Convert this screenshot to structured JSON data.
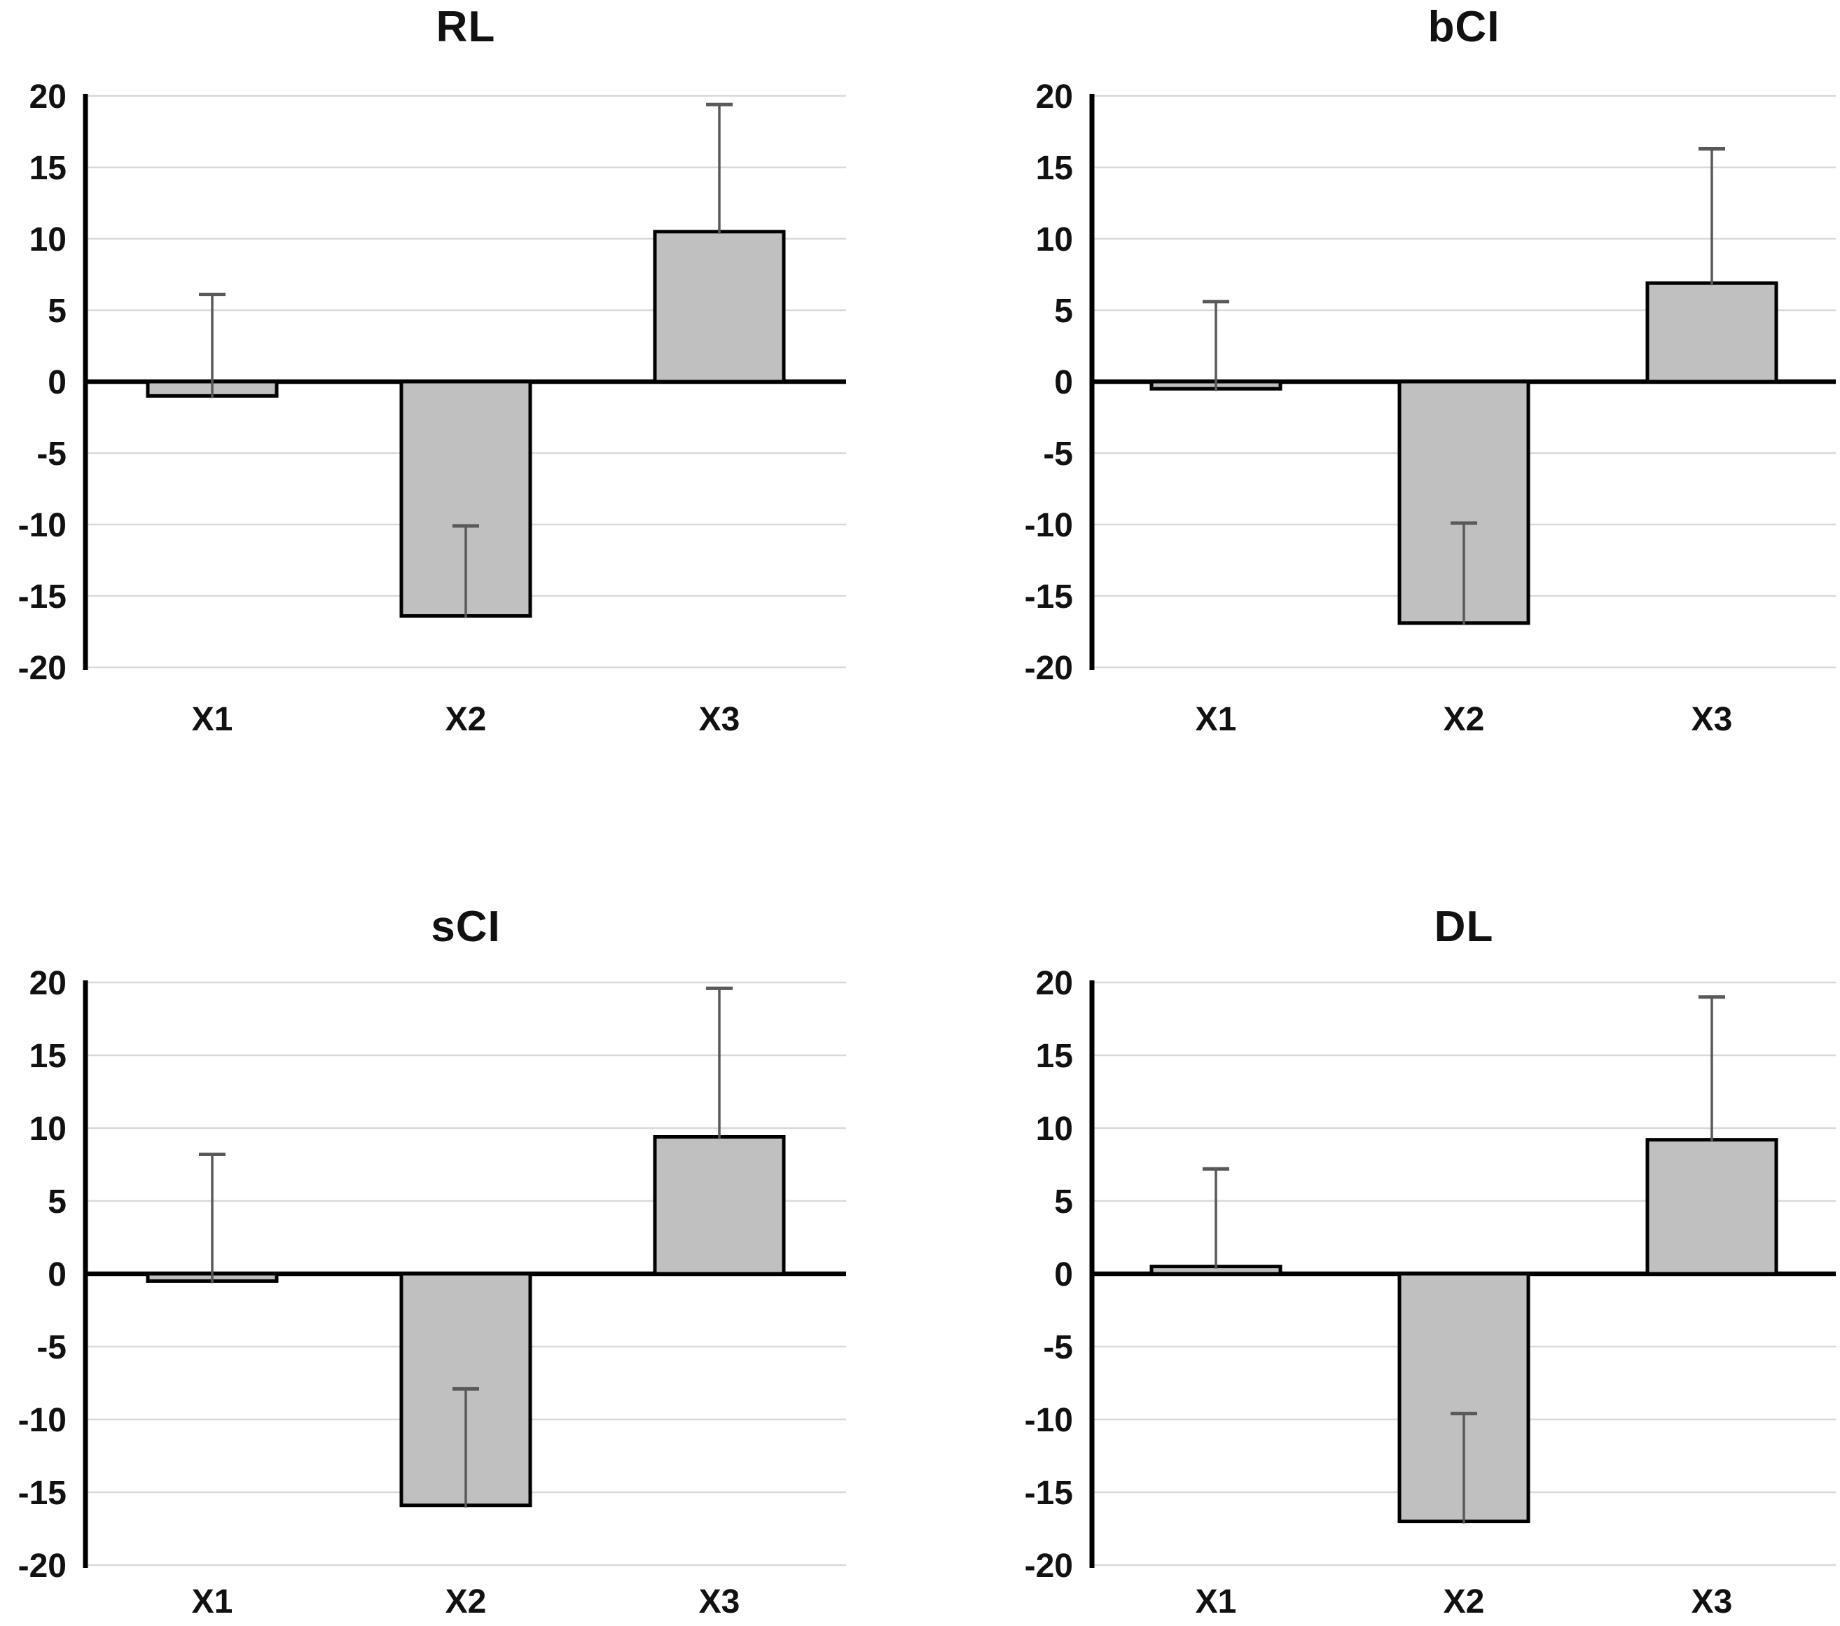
{
  "figure": {
    "background_color": "#ffffff",
    "text_color": "#111111"
  },
  "chart_data": {
    "type": "bar",
    "layout": "2x2-grid",
    "categories": [
      "X1",
      "X2",
      "X3"
    ],
    "ylim": [
      -20,
      20
    ],
    "ytick_step": 5,
    "ytick_labels": [
      "20",
      "15",
      "10",
      "5",
      "0",
      "-5",
      "-10",
      "-15",
      "-20"
    ],
    "grid": true,
    "legend": "none",
    "error_bars": "plus-direction-only",
    "bar_color": "#c0c0c0",
    "bar_border_color": "#000000",
    "error_bar_color": "#595959",
    "gridline_color": "#d9d9d9",
    "axis_color": "#000000",
    "panels": [
      {
        "title": "RL",
        "position": "top-left",
        "values": [
          -1.0,
          -16.4,
          10.5
        ],
        "error_plus": [
          7.1,
          6.3,
          8.9
        ],
        "error_caps": [
          6.1,
          -10.1,
          19.4
        ]
      },
      {
        "title": "bCI",
        "position": "top-right",
        "values": [
          -0.5,
          -16.9,
          6.9
        ],
        "error_plus": [
          6.1,
          7.0,
          9.4
        ],
        "error_caps": [
          5.6,
          -9.9,
          16.3
        ]
      },
      {
        "title": "sCI",
        "position": "bottom-left",
        "values": [
          -0.5,
          -15.9,
          9.4
        ],
        "error_plus": [
          8.7,
          8.0,
          10.2
        ],
        "error_caps": [
          8.2,
          -7.9,
          19.6
        ]
      },
      {
        "title": "DL",
        "position": "bottom-right",
        "values": [
          0.5,
          -17.0,
          9.2
        ],
        "error_plus": [
          6.7,
          7.4,
          9.8
        ],
        "error_caps": [
          7.2,
          -9.6,
          19.0
        ]
      }
    ]
  }
}
